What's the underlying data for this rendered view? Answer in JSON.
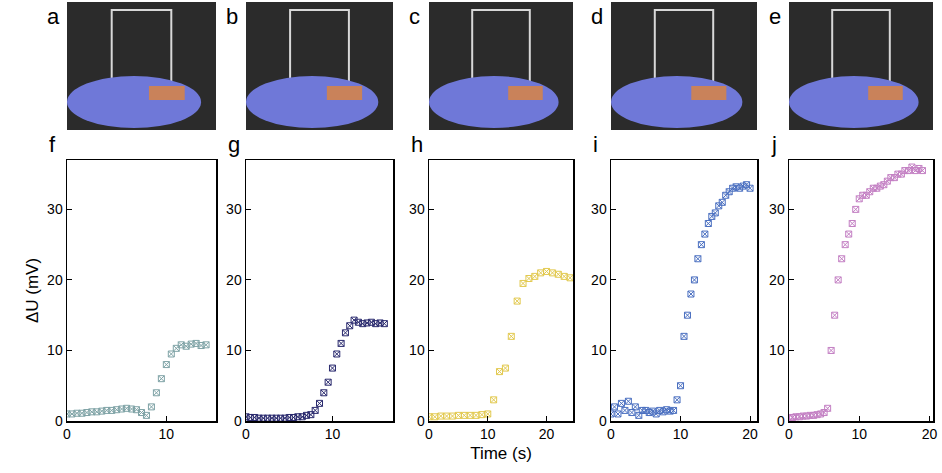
{
  "photos": [
    "a",
    "b",
    "c",
    "d",
    "e"
  ],
  "chart_data": [
    {
      "type": "scatter",
      "title": "f",
      "y_label": "ΔU (mV)",
      "marker": "square-x-open",
      "color": "#7fa3a6",
      "x": [
        0,
        0.5,
        1,
        1.5,
        2,
        2.5,
        3,
        3.5,
        4,
        4.5,
        5,
        5.5,
        6,
        6.5,
        7,
        7.5,
        8,
        8.5,
        9,
        9.5,
        10,
        10.5,
        11,
        11.5,
        12,
        12.5,
        13,
        13.5,
        14
      ],
      "values": [
        1.0,
        1.0,
        1.1,
        1.1,
        1.2,
        1.3,
        1.3,
        1.4,
        1.5,
        1.5,
        1.6,
        1.7,
        1.8,
        1.7,
        1.6,
        1.2,
        0.8,
        2.0,
        4.0,
        6.0,
        8.0,
        9.5,
        10.3,
        10.8,
        10.6,
        10.9,
        11.0,
        10.7,
        10.8
      ],
      "xlim": [
        0,
        15
      ],
      "xticks": [
        0,
        10
      ],
      "ylim": [
        0,
        37
      ],
      "yticks": [
        0,
        10,
        20,
        30
      ]
    },
    {
      "type": "scatter",
      "title": "g",
      "marker": "square-x-open",
      "color": "#2a2a6e",
      "x": [
        0,
        0.5,
        1,
        1.5,
        2,
        2.5,
        3,
        3.5,
        4,
        4.5,
        5,
        5.5,
        6,
        6.5,
        7,
        7.5,
        8,
        8.5,
        9,
        9.5,
        10,
        10.5,
        11,
        11.5,
        12,
        12.5,
        13,
        13.5,
        14,
        14.5,
        15,
        15.5,
        16
      ],
      "values": [
        0.6,
        0.5,
        0.5,
        0.4,
        0.4,
        0.4,
        0.4,
        0.4,
        0.4,
        0.4,
        0.5,
        0.5,
        0.6,
        0.6,
        0.8,
        0.9,
        1.5,
        2.5,
        4.0,
        5.5,
        7.5,
        9.5,
        11.0,
        12.5,
        13.5,
        14.3,
        14.0,
        13.8,
        13.9,
        14.0,
        13.8,
        13.9,
        13.8
      ],
      "xlim": [
        0,
        17
      ],
      "xticks": [
        0,
        10
      ],
      "ylim": [
        0,
        37
      ],
      "yticks": [
        0,
        10,
        20,
        30
      ]
    },
    {
      "type": "scatter",
      "title": "h",
      "x_label": "Time (s)",
      "marker": "square-x-open",
      "color": "#e2c94f",
      "x": [
        0,
        1,
        2,
        3,
        4,
        5,
        6,
        7,
        8,
        9,
        10,
        11,
        12,
        13,
        14,
        15,
        16,
        17,
        18,
        19,
        20,
        21,
        22,
        23,
        24
      ],
      "values": [
        0.6,
        0.6,
        0.7,
        0.7,
        0.7,
        0.8,
        0.8,
        0.8,
        0.8,
        0.9,
        1.0,
        3.0,
        7.0,
        7.5,
        12.0,
        17.0,
        19.5,
        20.2,
        20.5,
        21.0,
        21.2,
        21.0,
        20.8,
        20.5,
        20.3
      ],
      "xlim": [
        0,
        24.5
      ],
      "xticks": [
        0,
        10,
        20
      ],
      "ylim": [
        0,
        37
      ],
      "yticks": [
        0,
        10,
        20,
        30
      ]
    },
    {
      "type": "scatter",
      "title": "i",
      "marker": "square-x-open",
      "color": "#4a6fc0",
      "x": [
        0,
        0.5,
        1,
        1.5,
        2,
        2.5,
        3,
        3.5,
        4,
        4.5,
        5,
        5.5,
        6,
        6.5,
        7,
        7.5,
        8,
        8.5,
        9,
        9.5,
        10,
        10.5,
        11,
        11.5,
        12,
        12.5,
        13,
        13.5,
        14,
        14.5,
        15,
        15.5,
        16,
        16.5,
        17,
        17.5,
        18,
        18.5,
        19,
        19.5,
        20
      ],
      "values": [
        1.0,
        2.0,
        1.0,
        2.5,
        1.5,
        2.8,
        1.2,
        2.0,
        0.8,
        1.5,
        1.5,
        1.2,
        1.4,
        1.0,
        1.5,
        1.3,
        1.6,
        1.4,
        1.5,
        3.0,
        5.0,
        12.0,
        15.0,
        18.0,
        20.0,
        23.0,
        25.0,
        26.5,
        28.0,
        29.0,
        29.5,
        30.5,
        31.0,
        32.0,
        32.5,
        33.0,
        33.2,
        33.0,
        33.3,
        33.5,
        33.0
      ],
      "xlim": [
        0,
        21
      ],
      "xticks": [
        0,
        10,
        20
      ],
      "ylim": [
        0,
        37
      ],
      "yticks": [
        0,
        10,
        20,
        30
      ]
    },
    {
      "type": "scatter",
      "title": "j",
      "marker": "square-x-open",
      "color": "#c37fc3",
      "x": [
        0,
        0.5,
        1,
        1.5,
        2,
        2.5,
        3,
        3.5,
        4,
        4.5,
        5,
        5.5,
        6,
        6.5,
        7,
        7.5,
        8,
        8.5,
        9,
        9.5,
        10,
        10.5,
        11,
        11.5,
        12,
        12.5,
        13,
        13.5,
        14,
        14.5,
        15,
        15.5,
        16,
        16.5,
        17,
        17.5,
        18,
        18.5,
        19
      ],
      "values": [
        0.5,
        0.5,
        0.6,
        0.6,
        0.7,
        0.7,
        0.8,
        0.8,
        0.9,
        1.0,
        1.2,
        1.8,
        10.0,
        15.0,
        20.0,
        23.0,
        25.0,
        26.5,
        28.0,
        30.0,
        31.5,
        32.0,
        32.0,
        32.5,
        33.0,
        33.0,
        33.3,
        33.5,
        34.0,
        34.5,
        34.5,
        35.0,
        35.0,
        35.5,
        35.5,
        36.0,
        35.5,
        35.8,
        35.5
      ],
      "xlim": [
        0,
        20.5
      ],
      "xticks": [
        0,
        10,
        20
      ],
      "ylim": [
        0,
        37
      ],
      "yticks": [
        0,
        10,
        20,
        30
      ]
    }
  ]
}
